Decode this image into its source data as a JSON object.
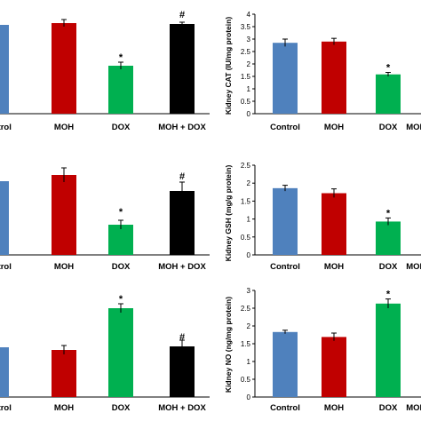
{
  "colors": {
    "control": "#4f81bd",
    "moh": "#c00000",
    "dox": "#00b050",
    "moh_dox": "#000000"
  },
  "chart_data": [
    {
      "type": "bar",
      "categories": [
        "Control",
        "MOH",
        "DOX",
        "MOH + DOX"
      ],
      "values": [
        null,
        null,
        null,
        null
      ],
      "annotations": [
        "",
        "",
        "*",
        "#"
      ],
      "ylabel": "",
      "ylim": null,
      "grid": false
    },
    {
      "type": "bar",
      "categories": [
        "Control",
        "MOH",
        "DOX",
        "MOH + DOX"
      ],
      "values": [
        2.85,
        2.9,
        1.58,
        null
      ],
      "errors": [
        0.15,
        0.13,
        0.08,
        null
      ],
      "annotations": [
        "",
        "",
        "*",
        ""
      ],
      "ylabel": "Kidney CAT (IU/mg protein)",
      "ylim": [
        0,
        4
      ],
      "yticks": [
        "0",
        "0.5",
        "1",
        "1.5",
        "2",
        "2.5",
        "3",
        "3.5",
        "4"
      ],
      "grid": false
    },
    {
      "type": "bar",
      "categories": [
        "Control",
        "MOH",
        "DOX",
        "MOH + DOX"
      ],
      "values": [
        null,
        null,
        null,
        null
      ],
      "annotations": [
        "",
        "",
        "*",
        "#"
      ],
      "ylabel": "",
      "ylim": null,
      "grid": false
    },
    {
      "type": "bar",
      "categories": [
        "Control",
        "MOH",
        "DOX",
        "MOH + DOX"
      ],
      "values": [
        1.86,
        1.72,
        0.93,
        null
      ],
      "errors": [
        0.08,
        0.12,
        0.1,
        null
      ],
      "annotations": [
        "",
        "",
        "*",
        ""
      ],
      "ylabel": "Kidney GSH (mg/g protein)",
      "ylim": [
        0,
        2.5
      ],
      "yticks": [
        "0",
        "0.5",
        "1",
        "1.5",
        "2",
        "2.5"
      ],
      "grid": false
    },
    {
      "type": "bar",
      "categories": [
        "Control",
        "MOH",
        "DOX",
        "MOH + DOX"
      ],
      "values": [
        null,
        null,
        null,
        null
      ],
      "annotations": [
        "",
        "",
        "*",
        "#"
      ],
      "ylabel": "",
      "ylim": null,
      "grid": false
    },
    {
      "type": "bar",
      "categories": [
        "Control",
        "MOH",
        "DOX",
        "MOH + DOX"
      ],
      "values": [
        1.83,
        1.69,
        2.63,
        null
      ],
      "errors": [
        0.05,
        0.11,
        0.13,
        null
      ],
      "annotations": [
        "",
        "",
        "*",
        ""
      ],
      "ylabel": "Kidney NO (ng/mg protein)",
      "ylim": [
        0,
        3
      ],
      "yticks": [
        "0",
        "0.5",
        "1",
        "1.5",
        "2",
        "2.5",
        "3"
      ],
      "grid": false
    }
  ]
}
